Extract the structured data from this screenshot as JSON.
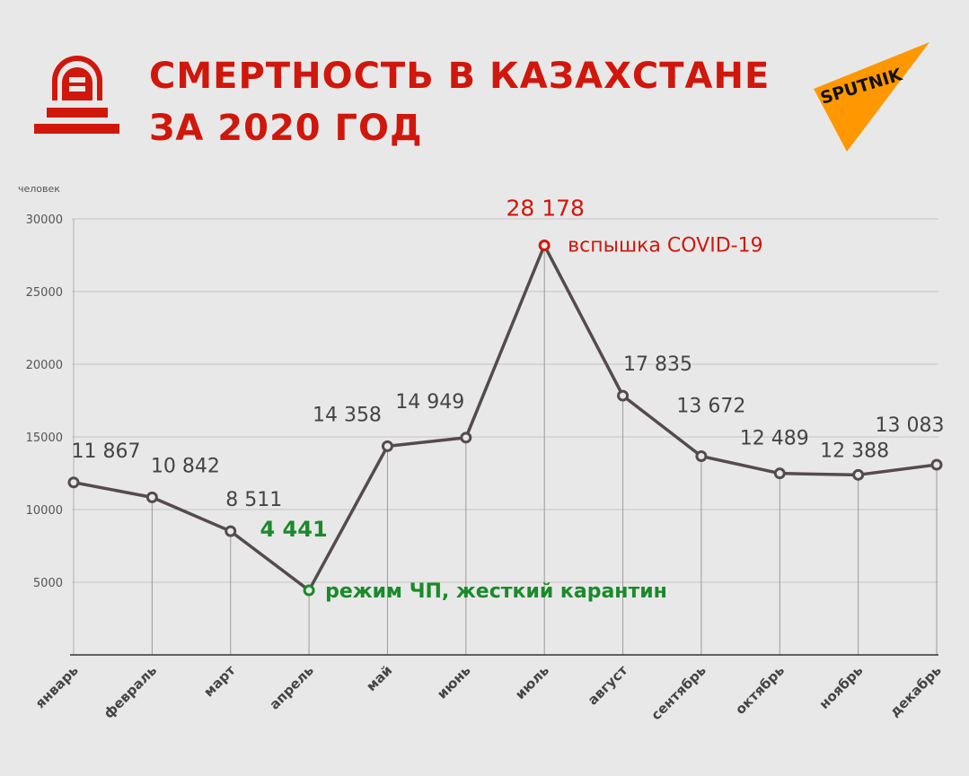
{
  "header": {
    "title_line1": "СМЕРТНОСТЬ В КАЗАХСТАНЕ",
    "title_line2": "ЗА 2020 ГОД",
    "brand": "SPUTNIK"
  },
  "colors": {
    "accent": "#d0170c",
    "green": "#1a8a2a",
    "line": "#544b4c",
    "orange": "#ff9800",
    "text": "#444444"
  },
  "chart_data": {
    "type": "line",
    "title": "Смертность в Казахстане за 2020 год",
    "ylabel": "человек",
    "xlabel": "",
    "ylim": [
      0,
      30000
    ],
    "yticks": [
      5000,
      10000,
      15000,
      20000,
      25000,
      30000
    ],
    "ytick_labels": [
      "5000",
      "10000",
      "15000",
      "20000",
      "25000",
      "30000"
    ],
    "categories": [
      "январь",
      "февраль",
      "март",
      "апрель",
      "май",
      "июнь",
      "июль",
      "август",
      "сентябрь",
      "октябрь",
      "ноябрь",
      "декабрь"
    ],
    "values": [
      11867,
      10842,
      8511,
      4441,
      14358,
      14949,
      28178,
      17835,
      13672,
      12489,
      12388,
      13083
    ],
    "value_labels": [
      "11 867",
      "10 842",
      "8 511",
      "4 441",
      "14 358",
      "14 949",
      "28 178",
      "17 835",
      "13 672",
      "12 489",
      "12 388",
      "13 083"
    ],
    "annotations": [
      {
        "month": "июль",
        "text": "вспышка COVID-19"
      },
      {
        "month": "апрель",
        "text": "режим ЧП, жесткий карантин"
      }
    ],
    "grid": true
  }
}
